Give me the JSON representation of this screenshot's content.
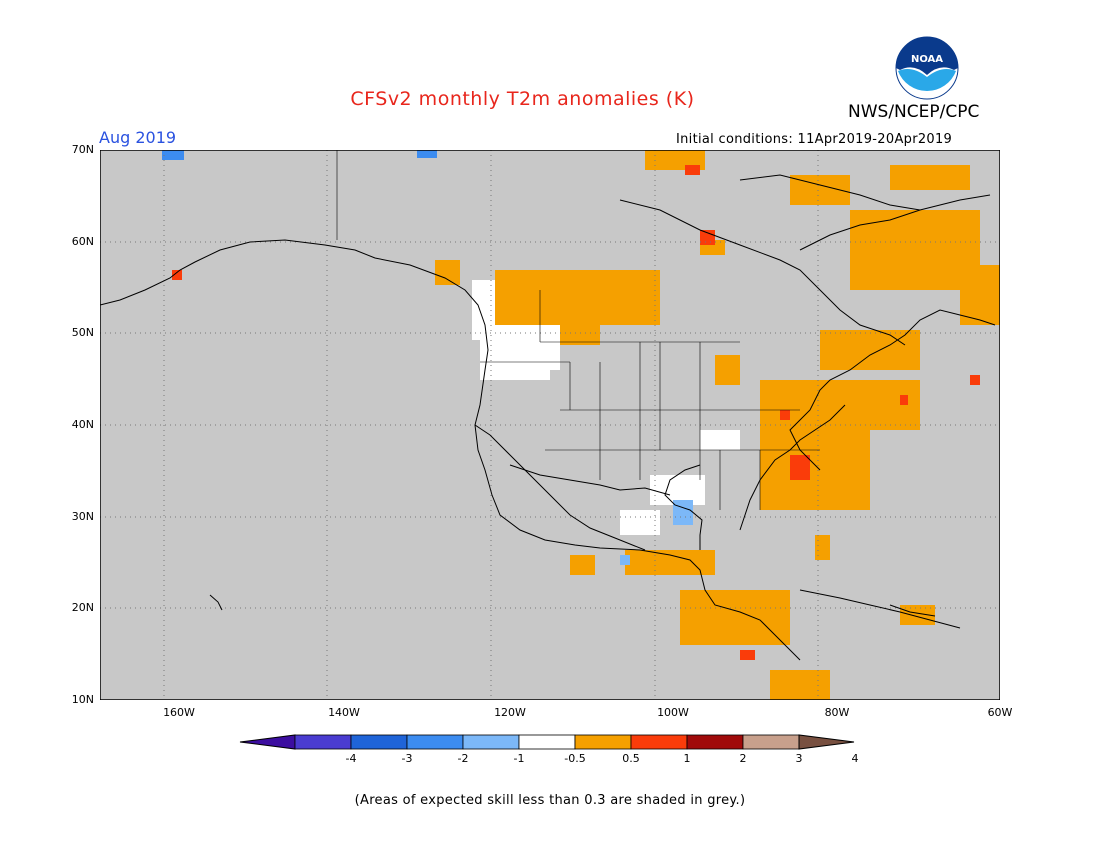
{
  "header": {
    "title": "CFSv2 monthly T2m anomalies (K)",
    "agency": "NWS/NCEP/CPC",
    "logo_text": "NOAA",
    "month": "Aug 2019",
    "initial_conditions": "Initial conditions: 11Apr2019-20Apr2019"
  },
  "map": {
    "background_color": "#c8c8c8",
    "lat_labels": [
      "70N",
      "60N",
      "50N",
      "40N",
      "30N",
      "20N",
      "10N"
    ],
    "lon_labels": [
      "160W",
      "140W",
      "120W",
      "100W",
      "80W",
      "60W"
    ],
    "grid": true
  },
  "colorbar": {
    "tick_labels": [
      "-4",
      "-3",
      "-2",
      "-1",
      "-0.5",
      "0.5",
      "1",
      "2",
      "3",
      "4"
    ],
    "colors": [
      "#3c0ea0",
      "#4a3cd0",
      "#1f64d8",
      "#3c8cf0",
      "#7cb8f8",
      "#ffffff",
      "#f5a000",
      "#fa3c0a",
      "#a00a0a",
      "#c8a08c",
      "#785040"
    ]
  },
  "footnote": "(Areas of expected skill less than 0.3 are shaded in grey.)"
}
